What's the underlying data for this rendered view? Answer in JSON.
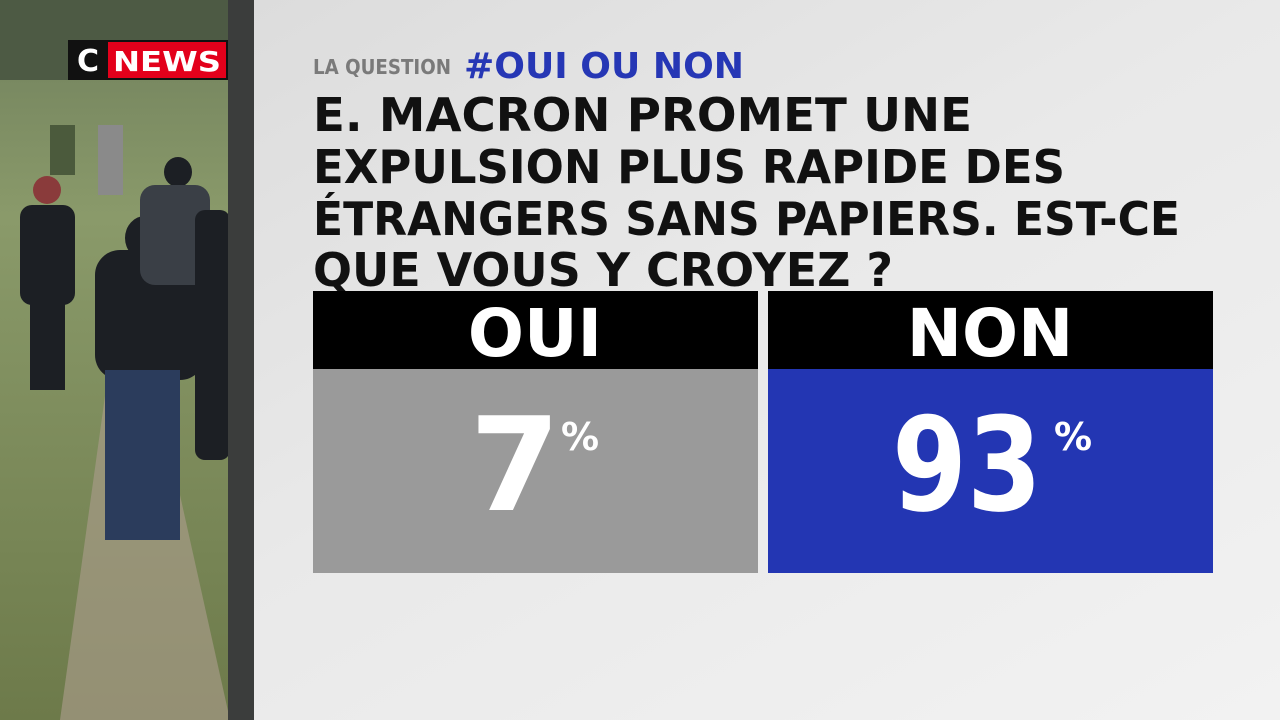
{
  "logo": {
    "c": "C",
    "news": "NEWS"
  },
  "header": {
    "kicker": "LA QUESTION",
    "tag": "#OUI OU NON"
  },
  "question": [
    "E. MACRON PROMET UNE",
    "EXPULSION PLUS RAPIDE DES",
    "ÉTRANGERS SANS PAPIERS. EST-CE",
    "QUE VOUS Y CROYEZ ?"
  ],
  "answers": [
    {
      "label": "OUI",
      "value": 7,
      "unit": "%"
    },
    {
      "label": "NON",
      "value": 93,
      "unit": "%"
    }
  ]
}
